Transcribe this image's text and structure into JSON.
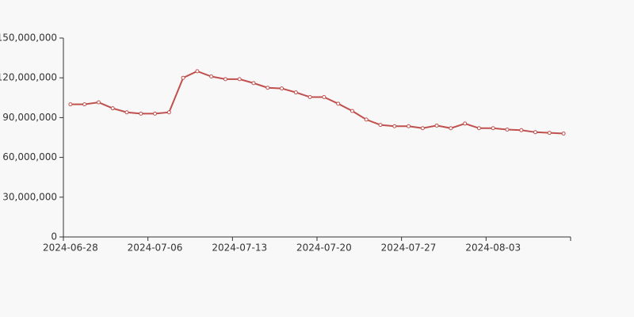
{
  "chart_data": {
    "type": "line",
    "categories": [
      "2024-06-28",
      null,
      null,
      null,
      null,
      null,
      "2024-07-06",
      null,
      null,
      null,
      null,
      null,
      "2024-07-13",
      null,
      null,
      null,
      null,
      null,
      "2024-07-20",
      null,
      null,
      null,
      null,
      null,
      "2024-07-27",
      null,
      null,
      null,
      null,
      null,
      "2024-08-03",
      null,
      null,
      null,
      null,
      null
    ],
    "series": [
      {
        "color": "#c0504d",
        "values": [
          100000000,
          100000000,
          101500000,
          97000000,
          94000000,
          93000000,
          93000000,
          94000000,
          120000000,
          125000000,
          121000000,
          119000000,
          119000000,
          116000000,
          112500000,
          112000000,
          109000000,
          105500000,
          105500000,
          100500000,
          95000000,
          88500000,
          84500000,
          83500000,
          83500000,
          82000000,
          84000000,
          82000000,
          85500000,
          82000000,
          82000000,
          81000000,
          80500000,
          79000000,
          78500000,
          78000000
        ]
      }
    ],
    "ylim": [
      0,
      150000000
    ],
    "yticks": [
      0,
      {
        "value": 30000000,
        "label": "30,000,000"
      },
      {
        "value": 60000000,
        "label": "60,000,000"
      },
      {
        "value": 90000000,
        "label": "90,000,000"
      },
      {
        "value": 120000000,
        "label": "120,000,000"
      },
      {
        "value": 150000000,
        "label": "150,000,000"
      }
    ]
  }
}
